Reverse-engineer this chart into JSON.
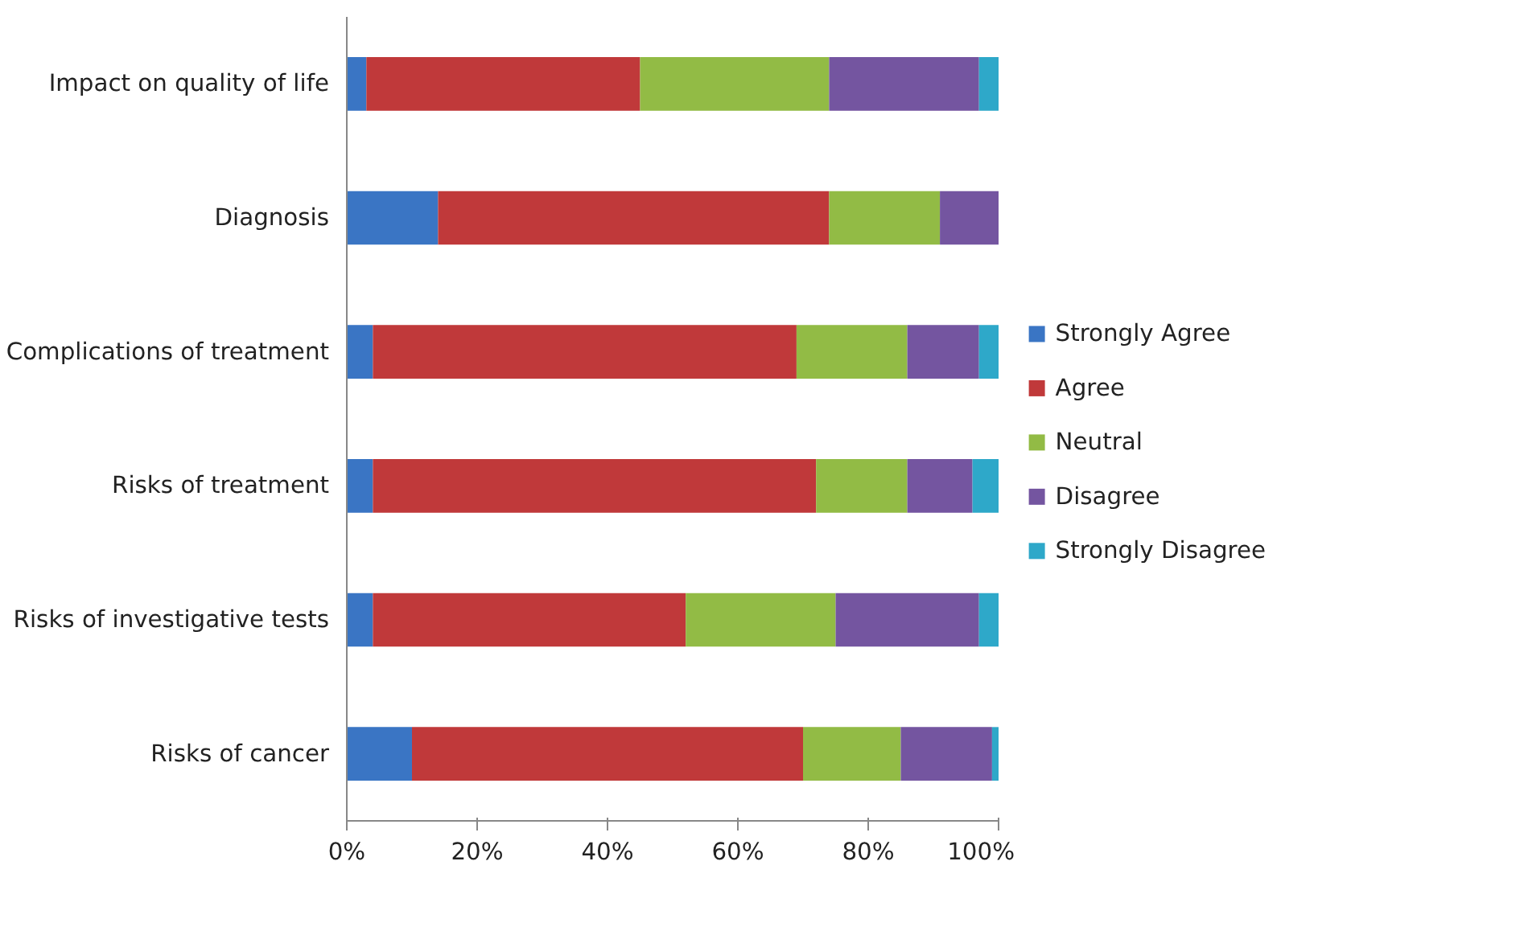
{
  "chart_data": {
    "type": "bar",
    "orientation": "horizontal",
    "stacked": true,
    "categories": [
      "Impact on quality of life",
      "Diagnosis",
      "Complications of treatment",
      "Risks of treatment",
      "Risks of investigative tests",
      "Risks of cancer"
    ],
    "series": [
      {
        "name": "Strongly Agree",
        "color": "#3a75c4",
        "values": [
          3,
          14,
          4,
          4,
          4,
          10
        ]
      },
      {
        "name": "Agree",
        "color": "#c0393a",
        "values": [
          42,
          60,
          65,
          68,
          48,
          60
        ]
      },
      {
        "name": "Neutral",
        "color": "#92bb45",
        "values": [
          29,
          17,
          17,
          14,
          23,
          15
        ]
      },
      {
        "name": "Disagree",
        "color": "#7455a0",
        "values": [
          23,
          9,
          11,
          10,
          22,
          14
        ]
      },
      {
        "name": "Strongly Disagree",
        "color": "#2ea8c9",
        "values": [
          3,
          0,
          3,
          4,
          3,
          1
        ]
      }
    ],
    "xlim": [
      0,
      100
    ],
    "xticks": [
      {
        "value": 0,
        "label": "0%"
      },
      {
        "value": 20,
        "label": "20%"
      },
      {
        "value": 40,
        "label": "40%"
      },
      {
        "value": 60,
        "label": "60%"
      },
      {
        "value": 80,
        "label": "80%"
      },
      {
        "value": 100,
        "label": "100%"
      }
    ],
    "grid": false,
    "legend": "right"
  }
}
